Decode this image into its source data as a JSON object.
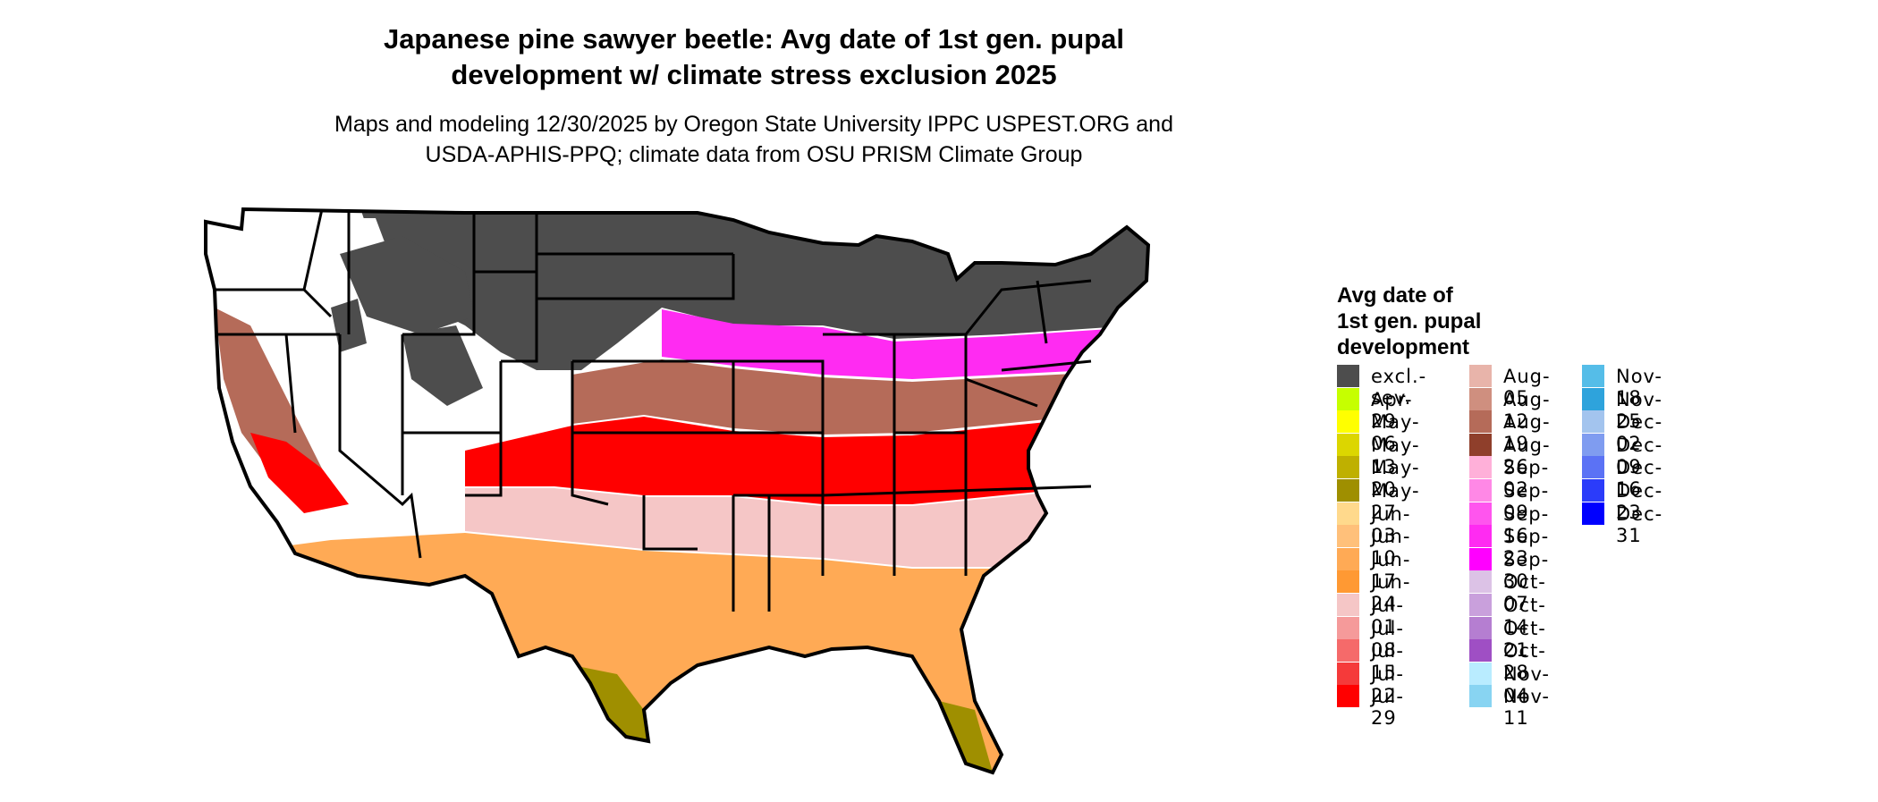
{
  "title_line1": "Japanese pine sawyer beetle: Avg date of 1st gen. pupal",
  "title_line2": "development w/ climate stress exclusion 2025",
  "subtitle_line1": "Maps and modeling 12/30/2025 by Oregon State University IPPC USPEST.ORG and",
  "subtitle_line2": "USDA-APHIS-PPQ; climate data from OSU PRISM Climate Group",
  "legend": {
    "title_line1": "Avg date of",
    "title_line2": "1st gen. pupal",
    "title_line3": "development",
    "items": [
      {
        "label": "excl.-sev.",
        "color": "#4d4d4d"
      },
      {
        "label": "Apr-29",
        "color": "#c6ff00"
      },
      {
        "label": "May-06",
        "color": "#ffff00"
      },
      {
        "label": "May-13",
        "color": "#dcd600"
      },
      {
        "label": "May-20",
        "color": "#bfb000"
      },
      {
        "label": "May-27",
        "color": "#9f8f00"
      },
      {
        "label": "Jun-03",
        "color": "#ffd98c"
      },
      {
        "label": "Jun-10",
        "color": "#ffc07a"
      },
      {
        "label": "Jun-17",
        "color": "#ffaa55"
      },
      {
        "label": "Jun-24",
        "color": "#ff9933"
      },
      {
        "label": "Jul-01",
        "color": "#f5c6c6"
      },
      {
        "label": "Jul-08",
        "color": "#f59a9a"
      },
      {
        "label": "Jul-15",
        "color": "#f56a6a"
      },
      {
        "label": "Jul-22",
        "color": "#f53a3a"
      },
      {
        "label": "Jul-29",
        "color": "#ff0000"
      },
      {
        "label": "Aug-05",
        "color": "#e8b4aa"
      },
      {
        "label": "Aug-12",
        "color": "#cf8f7f"
      },
      {
        "label": "Aug-19",
        "color": "#b56b59"
      },
      {
        "label": "Aug-26",
        "color": "#8f3f2b"
      },
      {
        "label": "Sep-02",
        "color": "#ffb0d9"
      },
      {
        "label": "Sep-09",
        "color": "#ff88e6"
      },
      {
        "label": "Sep-16",
        "color": "#ff55ee"
      },
      {
        "label": "Sep-23",
        "color": "#ff2bf2"
      },
      {
        "label": "Sep-30",
        "color": "#ff00ff"
      },
      {
        "label": "Oct-07",
        "color": "#dcc2e6"
      },
      {
        "label": "Oct-14",
        "color": "#c9a0dc"
      },
      {
        "label": "Oct-21",
        "color": "#b57ed1"
      },
      {
        "label": "Oct-28",
        "color": "#9f4fc4"
      },
      {
        "label": "Nov-04",
        "color": "#b9ecff"
      },
      {
        "label": "Nov-11",
        "color": "#88d4f2"
      },
      {
        "label": "Nov-18",
        "color": "#55bde8"
      },
      {
        "label": "Nov-25",
        "color": "#2ea3dc"
      },
      {
        "label": "Dec-02",
        "color": "#a3c4ee"
      },
      {
        "label": "Dec-09",
        "color": "#7f9cf0"
      },
      {
        "label": "Dec-16",
        "color": "#5b72f5"
      },
      {
        "label": "Dec-23",
        "color": "#2b3cfa"
      },
      {
        "label": "Dec-31",
        "color": "#0000ff"
      }
    ]
  },
  "map": {
    "outline_color": "#000000",
    "no_data_color": "#ffffff"
  }
}
